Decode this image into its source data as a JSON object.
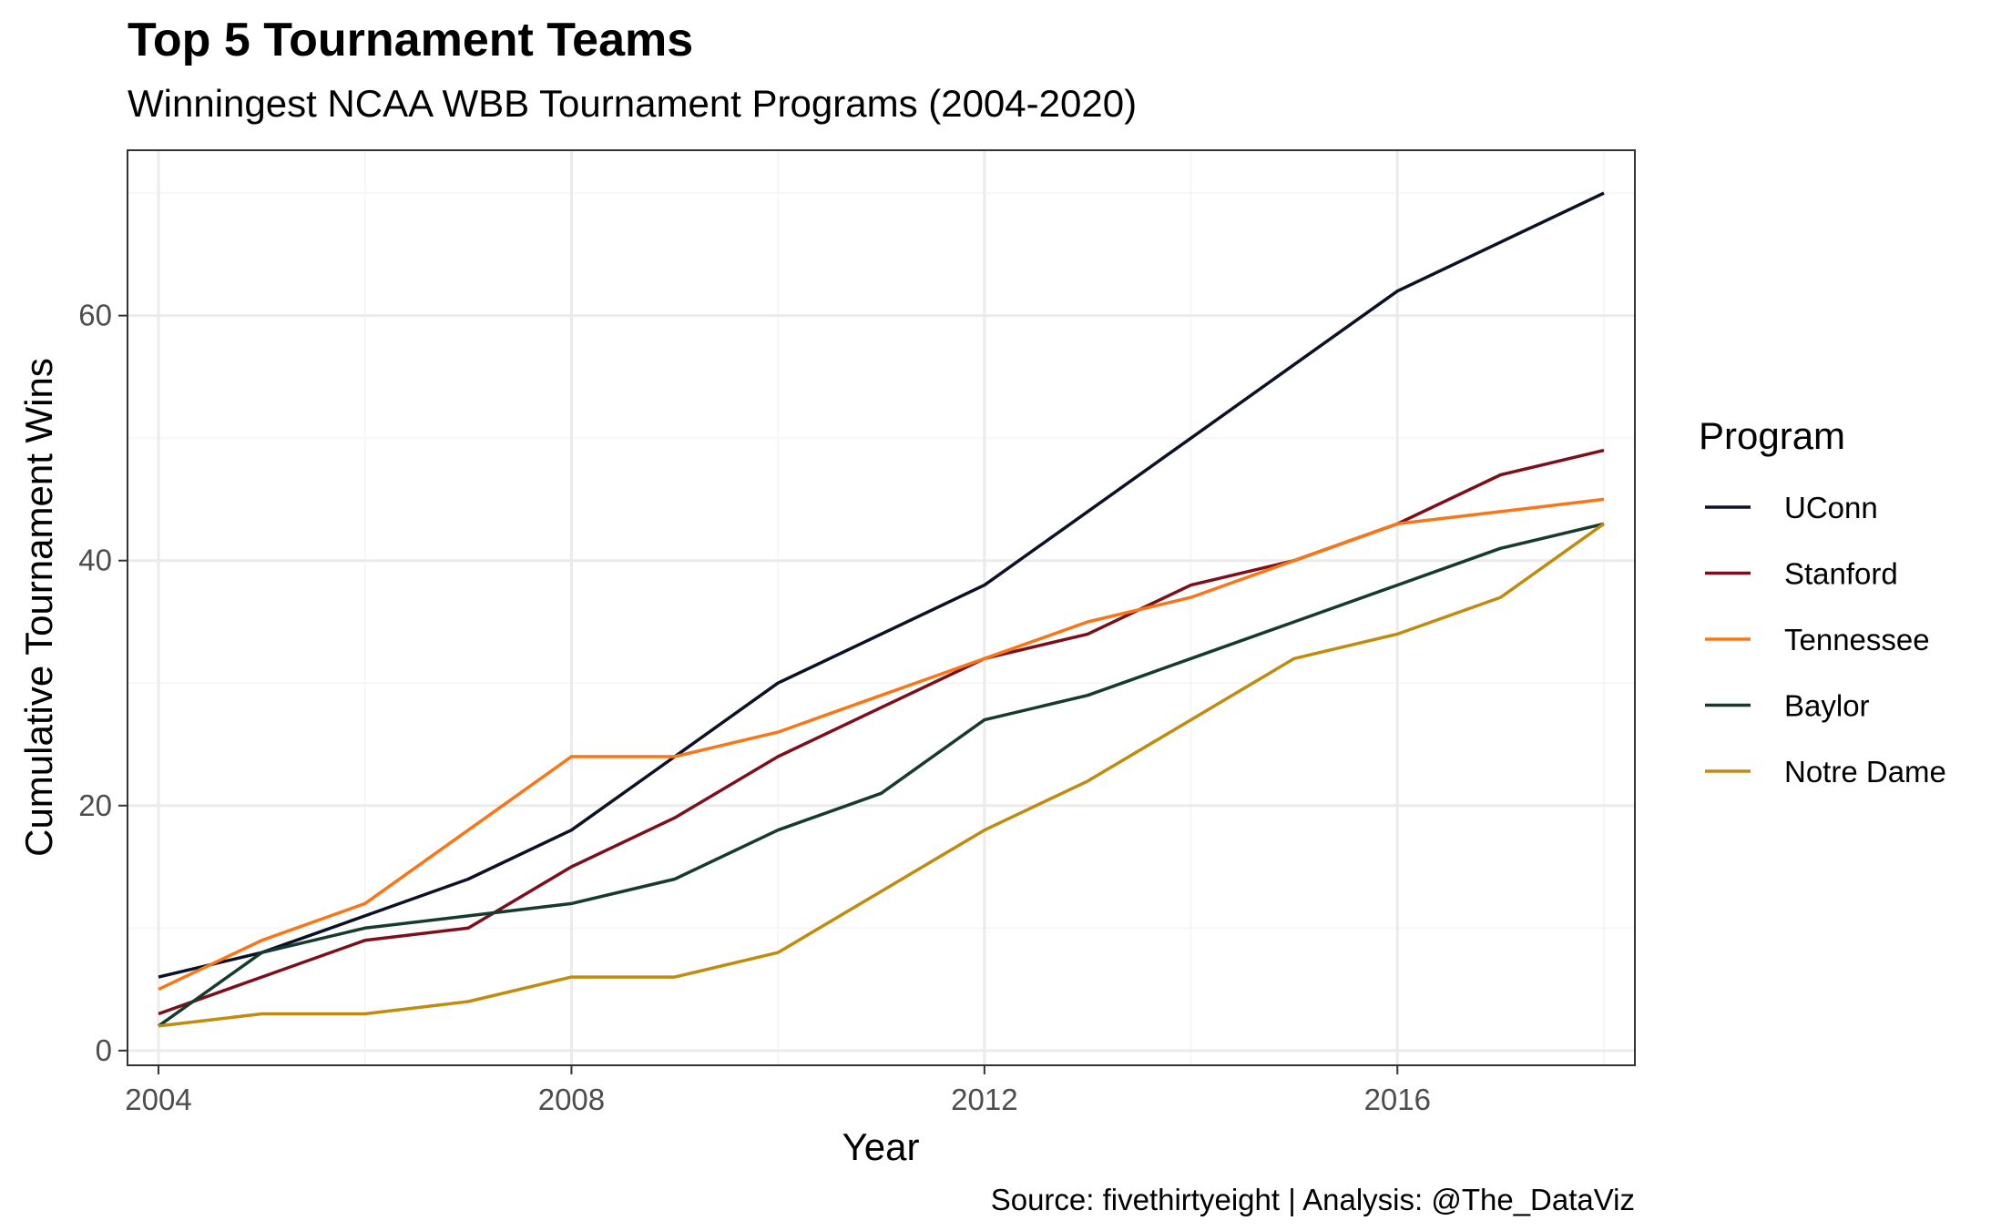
{
  "chart_data": {
    "type": "line",
    "title": "Top 5 Tournament Teams",
    "subtitle": "Winningest NCAA WBB Tournament Programs (2004-2020)",
    "xlabel": "Year",
    "ylabel": "Cumulative Tournament Wins",
    "caption": "Source: fivethirtyeight | Analysis: @The_DataViz",
    "legend_title": "Program",
    "legend_position": "right",
    "grid": true,
    "xlim": [
      2003.7,
      2018.3
    ],
    "ylim": [
      -1.2,
      73.5
    ],
    "x_ticks": [
      2004,
      2008,
      2012,
      2016
    ],
    "y_ticks": [
      0,
      20,
      40,
      60
    ],
    "x": [
      2004,
      2005,
      2006,
      2007,
      2008,
      2009,
      2010,
      2011,
      2012,
      2013,
      2014,
      2015,
      2016,
      2017,
      2018
    ],
    "series": [
      {
        "name": "UConn",
        "color": "#0b1126",
        "values": [
          6,
          8,
          11,
          14,
          18,
          24,
          30,
          34,
          38,
          44,
          50,
          56,
          62,
          66,
          70
        ]
      },
      {
        "name": "Stanford",
        "color": "#7c0f1b",
        "values": [
          3,
          6,
          9,
          10,
          15,
          19,
          24,
          28,
          32,
          34,
          38,
          40,
          43,
          47,
          49
        ]
      },
      {
        "name": "Tennessee",
        "color": "#fa7515",
        "values": [
          5,
          9,
          12,
          18,
          24,
          24,
          26,
          29,
          32,
          35,
          37,
          40,
          43,
          44,
          45
        ]
      },
      {
        "name": "Baylor",
        "color": "#163b2e",
        "values": [
          2,
          8,
          10,
          11,
          12,
          14,
          18,
          21,
          27,
          29,
          32,
          35,
          38,
          41,
          43
        ]
      },
      {
        "name": "Notre Dame",
        "color": "#c08b0e",
        "values": [
          2,
          3,
          3,
          4,
          6,
          6,
          8,
          13,
          18,
          22,
          27,
          32,
          34,
          37,
          43
        ]
      }
    ]
  },
  "colors": {
    "panel_border": "#333333",
    "grid_major": "#ebebeb",
    "grid_minor": "#f4f4f4",
    "tick_text": "#4d4d4d"
  }
}
